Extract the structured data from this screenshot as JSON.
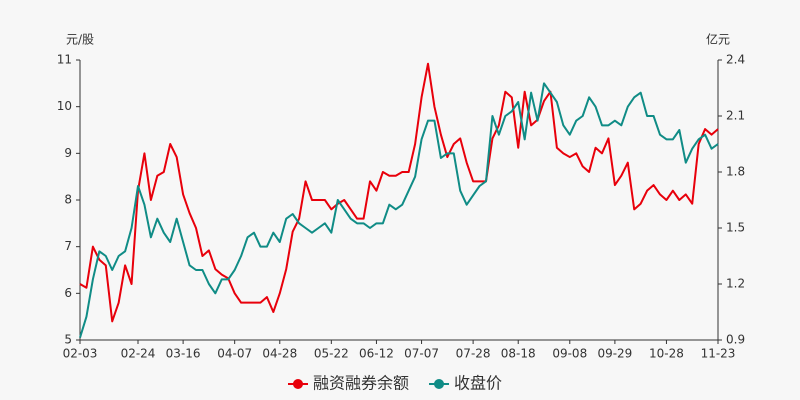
{
  "chart_data": {
    "type": "line",
    "y_label": "元/股",
    "y2_label": "亿元",
    "categories": [
      "02-03",
      null,
      null,
      null,
      null,
      null,
      null,
      null,
      null,
      "02-24",
      null,
      null,
      null,
      null,
      null,
      null,
      "03-16",
      null,
      null,
      null,
      null,
      null,
      null,
      null,
      "04-07",
      null,
      null,
      null,
      null,
      null,
      null,
      "04-28",
      null,
      null,
      null,
      null,
      null,
      null,
      null,
      "05-22",
      null,
      null,
      null,
      null,
      null,
      null,
      "06-12",
      null,
      null,
      null,
      null,
      null,
      null,
      "07-07",
      null,
      null,
      null,
      null,
      null,
      null,
      null,
      "07-28",
      null,
      null,
      null,
      null,
      null,
      null,
      "08-18",
      null,
      null,
      null,
      null,
      null,
      null,
      null,
      "09-08",
      null,
      null,
      null,
      null,
      null,
      null,
      "09-29",
      null,
      null,
      null,
      null,
      null,
      null,
      null,
      "10-28",
      null,
      null,
      null,
      null,
      null,
      null,
      null,
      "11-23"
    ],
    "series": [
      {
        "name": "融资融券余额",
        "color": "#e8000b",
        "axis": "y2",
        "values": [
          1.2,
          1.18,
          1.4,
          1.33,
          1.3,
          1.0,
          1.1,
          1.3,
          1.2,
          1.7,
          1.9,
          1.65,
          1.78,
          1.8,
          1.95,
          1.88,
          1.68,
          1.58,
          1.5,
          1.35,
          1.38,
          1.28,
          1.25,
          1.23,
          1.15,
          1.1,
          1.1,
          1.1,
          1.1,
          1.13,
          1.05,
          1.15,
          1.28,
          1.48,
          1.55,
          1.75,
          1.65,
          1.65,
          1.65,
          1.6,
          1.63,
          1.65,
          1.6,
          1.55,
          1.55,
          1.75,
          1.7,
          1.8,
          1.78,
          1.78,
          1.8,
          1.8,
          1.95,
          2.2,
          2.38,
          2.15,
          2.0,
          1.88,
          1.95,
          1.98,
          1.85,
          1.75,
          1.75,
          1.75,
          1.98,
          2.05,
          2.23,
          2.2,
          1.93,
          2.23,
          2.05,
          2.08,
          2.18,
          2.23,
          1.93,
          1.9,
          1.88,
          1.9,
          1.83,
          1.8,
          1.93,
          1.9,
          1.98,
          1.73,
          1.78,
          1.85,
          1.6,
          1.63,
          1.7,
          1.73,
          1.68,
          1.65,
          1.7,
          1.65,
          1.68,
          1.63,
          1.95,
          2.03,
          2.0,
          2.03
        ]
      },
      {
        "name": "收盘价",
        "color": "#108c86",
        "axis": "y",
        "values": [
          5.05,
          5.5,
          6.3,
          6.9,
          6.8,
          6.5,
          6.8,
          6.9,
          7.4,
          8.3,
          7.9,
          7.2,
          7.6,
          7.3,
          7.1,
          7.6,
          7.1,
          6.6,
          6.5,
          6.5,
          6.2,
          6.0,
          6.3,
          6.3,
          6.5,
          6.8,
          7.2,
          7.3,
          7.0,
          7.0,
          7.3,
          7.1,
          7.6,
          7.7,
          7.5,
          7.4,
          7.3,
          7.4,
          7.5,
          7.3,
          8.0,
          7.8,
          7.6,
          7.5,
          7.5,
          7.4,
          7.5,
          7.5,
          7.9,
          7.8,
          7.9,
          8.2,
          8.5,
          9.3,
          9.7,
          9.7,
          8.9,
          9.0,
          9.0,
          8.2,
          7.9,
          8.1,
          8.3,
          8.4,
          9.8,
          9.4,
          9.8,
          9.9,
          10.1,
          9.3,
          10.3,
          9.7,
          10.5,
          10.3,
          10.1,
          9.6,
          9.4,
          9.7,
          9.8,
          10.2,
          10.0,
          9.6,
          9.6,
          9.7,
          9.6,
          10.0,
          10.2,
          10.3,
          9.8,
          9.8,
          9.4,
          9.3,
          9.3,
          9.5,
          8.8,
          9.1,
          9.3,
          9.4,
          9.1,
          9.2
        ]
      }
    ],
    "ylim": [
      5,
      11
    ],
    "yticks": [
      5,
      6,
      7,
      8,
      9,
      10,
      11
    ],
    "y2lim": [
      0.9,
      2.4
    ],
    "y2ticks": [
      0.9,
      1.2,
      1.5,
      1.8,
      2.1,
      2.4
    ],
    "grid": false,
    "legend": "bottom"
  }
}
